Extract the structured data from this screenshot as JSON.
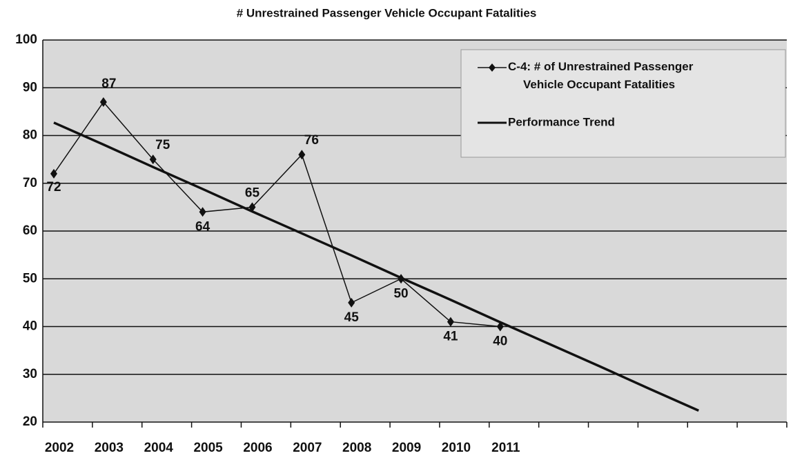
{
  "chart_data": {
    "type": "line",
    "title": "# Unrestrained Passenger Vehicle Occupant Fatalities",
    "categories": [
      "2002",
      "2003",
      "2004",
      "2005",
      "2006",
      "2007",
      "2008",
      "2009",
      "2010",
      "2011",
      null,
      null,
      null,
      null,
      null
    ],
    "series": [
      {
        "name": "C-4: # of Unrestrained Passenger Vehicle Occupant Fatalities",
        "color": "#111111",
        "marker": "diamond",
        "values": [
          72,
          87,
          75,
          64,
          65,
          76,
          45,
          50,
          41,
          40,
          null,
          null,
          null,
          null,
          null
        ]
      },
      {
        "name": "Performance Trend",
        "color": "#111111",
        "values": [
          82.7,
          78.1,
          73.4,
          68.8,
          64.1,
          59.5,
          54.9,
          50.2,
          45.6,
          40.9,
          36.3,
          31.7,
          27.0,
          22.4,
          null
        ]
      }
    ],
    "ylim": [
      20,
      100
    ],
    "yticks": [
      20,
      30,
      40,
      50,
      60,
      70,
      80,
      90,
      100
    ],
    "grid": true,
    "legend": "upper right"
  }
}
